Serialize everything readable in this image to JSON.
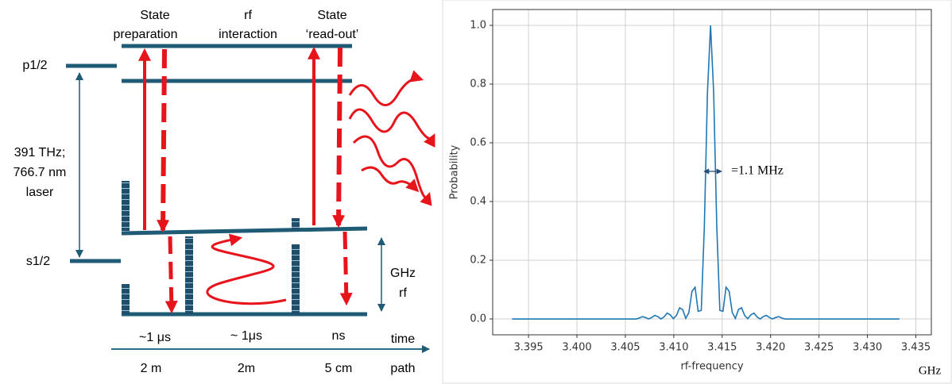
{
  "diagram": {
    "stages": [
      {
        "title": [
          "State",
          "preparation"
        ],
        "time": "~1 μs",
        "path": "2 m"
      },
      {
        "title": [
          "rf",
          "interaction"
        ],
        "time": "~ 1μs",
        "path": "2m"
      },
      {
        "title": [
          "State",
          "‘read-out’"
        ],
        "time": "ns",
        "path": "5 cm"
      }
    ],
    "levels": {
      "upper": "p1/2",
      "lower": "s1/2"
    },
    "transition": [
      "391 THz;",
      "766.7 nm",
      "laser"
    ],
    "rf": [
      "GHz",
      "rf"
    ],
    "axis": {
      "time": "time",
      "path": "path"
    }
  },
  "chart_data": {
    "type": "line",
    "x": [
      3.3933,
      3.398,
      3.402,
      3.40612,
      3.40644,
      3.40676,
      3.40708,
      3.4074,
      3.40772,
      3.40804,
      3.40836,
      3.40868,
      3.409,
      3.40932,
      3.40964,
      3.40996,
      3.41028,
      3.4106,
      3.41092,
      3.41124,
      3.41156,
      3.41188,
      3.4122,
      3.41252,
      3.41284,
      3.41316,
      3.41348,
      3.4138,
      3.41412,
      3.41444,
      3.41476,
      3.41508,
      3.4154,
      3.41572,
      3.41604,
      3.41636,
      3.41668,
      3.417,
      3.41732,
      3.41764,
      3.41796,
      3.41828,
      3.4186,
      3.41892,
      3.41924,
      3.41956,
      3.41988,
      3.4202,
      3.42052,
      3.42084,
      3.42116,
      3.42148,
      3.426,
      3.4333
    ],
    "values": [
      0,
      0,
      0,
      0,
      0.003,
      0.008,
      0.005,
      0,
      0.005,
      0.012,
      0.008,
      0,
      0.007,
      0.02,
      0.014,
      0.001,
      0.012,
      0.038,
      0.032,
      0.002,
      0.022,
      0.094,
      0.108,
      0.026,
      0.029,
      0.316,
      0.772,
      1,
      0.772,
      0.316,
      0.029,
      0.026,
      0.108,
      0.094,
      0.022,
      0.002,
      0.032,
      0.038,
      0.012,
      0.001,
      0.014,
      0.02,
      0.007,
      0,
      0.008,
      0.012,
      0.005,
      0,
      0.005,
      0.008,
      0.003,
      0,
      0,
      0
    ],
    "color": "#1f77b4",
    "xlabel": "rf-frequency",
    "ylabel": "Probability",
    "x_unit": "GHz",
    "annotation": "=1.1 MHz",
    "xlim": [
      3.3913,
      3.4366
    ],
    "ylim": [
      -0.054,
      1.054
    ],
    "xticks": [
      3.395,
      {
        "value": 3.4,
        "label": "3.400"
      },
      3.405,
      {
        "value": 3.41,
        "label": "3.410"
      },
      3.415,
      {
        "value": 3.42,
        "label": "3.420"
      },
      3.425,
      {
        "value": 3.43,
        "label": "3.430"
      },
      3.435
    ],
    "yticks": [
      {
        "value": 0,
        "label": "0.0"
      },
      0.2,
      0.4,
      0.6,
      0.8,
      {
        "value": 1,
        "label": "1.0"
      }
    ],
    "grid": true
  }
}
